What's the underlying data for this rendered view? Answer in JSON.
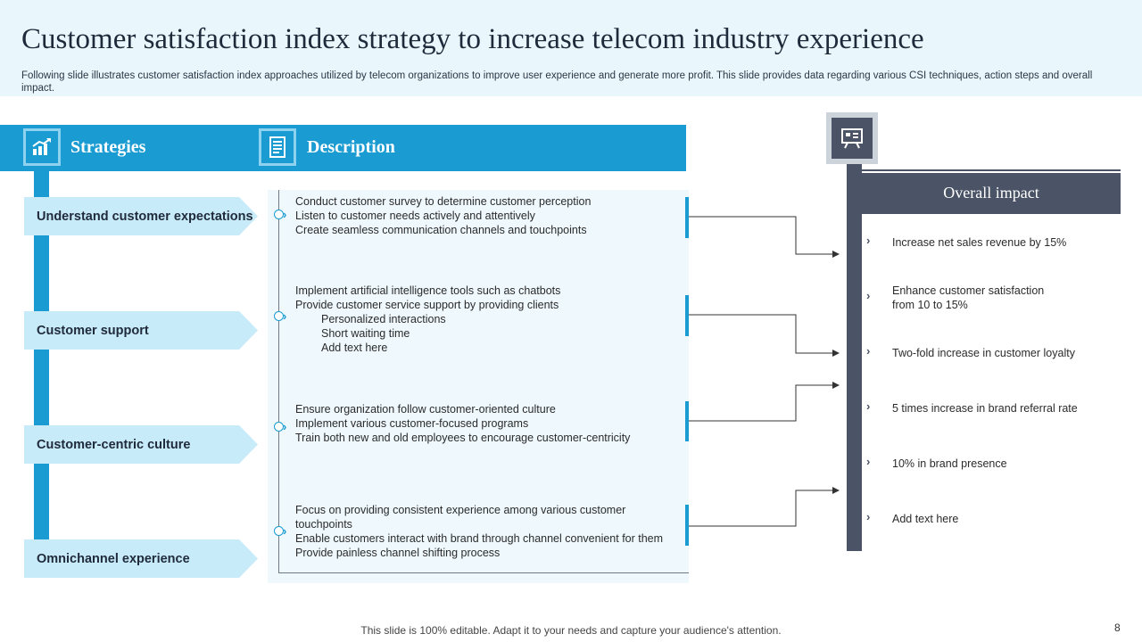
{
  "slide": {
    "title": "Customer satisfaction index strategy to increase telecom industry experience",
    "subtitle": "Following slide illustrates customer satisfaction index approaches utilized by telecom organizations to improve user experience and generate more profit. This slide provides data regarding various CSI techniques, action steps and overall impact.",
    "footer": "This slide is 100% editable. Adapt it to your needs and capture your audience's attention.",
    "page_number": "8"
  },
  "headers": {
    "strategies": "Strategies",
    "description": "Description",
    "overall_impact": "Overall impact"
  },
  "strategies": [
    "Understand customer expectations",
    "Customer support",
    "Customer-centric culture",
    "Omnichannel experience"
  ],
  "descriptions": [
    {
      "lines": [
        "Conduct customer survey to determine customer perception",
        "Listen to customer needs actively and attentively",
        "Create seamless communication channels and touchpoints"
      ]
    },
    {
      "lines": [
        "Implement artificial intelligence tools such as chatbots",
        "Provide customer service support by providing clients"
      ],
      "sub_lines": [
        "Personalized interactions",
        "Short waiting time",
        "Add text here"
      ]
    },
    {
      "lines": [
        "Ensure organization follow customer-oriented culture",
        "Implement various customer-focused programs",
        "Train both new and old employees to encourage customer-centricity"
      ]
    },
    {
      "lines": [
        "Focus on providing consistent experience among various customer",
        "touchpoints",
        "Enable customers interact with brand through channel convenient for them",
        "Provide painless channel shifting process"
      ]
    }
  ],
  "impacts": [
    "Increase net sales revenue by 15%",
    "Enhance customer satisfaction from 10 to 15%",
    "Two-fold increase in customer loyalty",
    "5 times increase in brand referral rate",
    "10% in brand presence",
    "Add text here"
  ],
  "colors": {
    "accent_blue": "#1a9bd2",
    "light_blue": "#c8ebfa",
    "panel_blue": "#eef8fd",
    "slate": "#4a5466"
  },
  "icons": {
    "strategies": "growth-chart-icon",
    "description": "document-icon",
    "impact": "presentation-board-icon",
    "bullet": "chevron-right-icon"
  }
}
